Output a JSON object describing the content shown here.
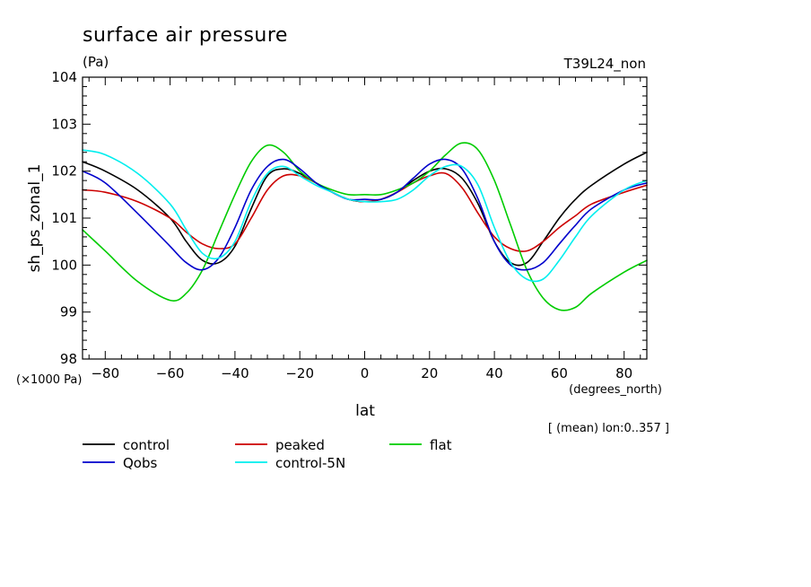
{
  "chart_data": {
    "type": "line",
    "title": "surface air pressure",
    "units_label": "(Pa)",
    "run_label": "T39L24_non",
    "xlabel": "lat",
    "x_units": "(degrees_north)",
    "ylabel": "sh_ps_zonal_1",
    "y_scale_note": "(×1000 Pa)",
    "mean_note": "[ (mean) lon:0..357 ]",
    "xlim": [
      -87,
      87
    ],
    "ylim": [
      98,
      104
    ],
    "x_ticks": [
      -80,
      -60,
      -40,
      -20,
      0,
      20,
      40,
      60,
      80
    ],
    "y_ticks": [
      98,
      99,
      100,
      101,
      102,
      103,
      104
    ],
    "grid": false,
    "legend_position": "below-left",
    "x": [
      -87,
      -80,
      -70,
      -60,
      -55,
      -50,
      -45,
      -40,
      -35,
      -30,
      -25,
      -20,
      -15,
      -10,
      -5,
      0,
      5,
      10,
      15,
      20,
      25,
      30,
      35,
      40,
      45,
      50,
      55,
      60,
      65,
      70,
      80,
      87
    ],
    "series": [
      {
        "name": "control",
        "color": "#000000",
        "values": [
          102.2,
          102.0,
          101.6,
          101.0,
          100.5,
          100.1,
          100.05,
          100.4,
          101.2,
          101.9,
          102.05,
          101.95,
          101.75,
          101.55,
          101.4,
          101.35,
          101.4,
          101.55,
          101.8,
          102.0,
          102.05,
          101.85,
          101.3,
          100.5,
          100.05,
          100.05,
          100.5,
          101.0,
          101.4,
          101.7,
          102.15,
          102.4
        ]
      },
      {
        "name": "peaked",
        "color": "#cc0000",
        "values": [
          101.6,
          101.55,
          101.35,
          101.0,
          100.7,
          100.45,
          100.35,
          100.45,
          101.0,
          101.6,
          101.9,
          101.9,
          101.75,
          101.55,
          101.4,
          101.35,
          101.4,
          101.55,
          101.75,
          101.9,
          101.95,
          101.65,
          101.1,
          100.6,
          100.35,
          100.3,
          100.5,
          100.8,
          101.05,
          101.3,
          101.55,
          101.7
        ]
      },
      {
        "name": "flat",
        "color": "#00cc00",
        "values": [
          100.75,
          100.3,
          99.65,
          99.25,
          99.4,
          99.9,
          100.7,
          101.5,
          102.2,
          102.55,
          102.4,
          102.0,
          101.75,
          101.6,
          101.5,
          101.5,
          101.5,
          101.6,
          101.75,
          102.0,
          102.35,
          102.6,
          102.45,
          101.8,
          100.85,
          99.9,
          99.3,
          99.05,
          99.1,
          99.4,
          99.85,
          100.1
        ]
      },
      {
        "name": "Qobs",
        "color": "#0000cc",
        "values": [
          102.0,
          101.75,
          101.1,
          100.4,
          100.05,
          99.9,
          100.15,
          100.8,
          101.6,
          102.1,
          102.25,
          102.05,
          101.75,
          101.55,
          101.4,
          101.4,
          101.4,
          101.55,
          101.85,
          102.15,
          102.25,
          102.05,
          101.4,
          100.5,
          100.0,
          99.9,
          100.05,
          100.45,
          100.85,
          101.2,
          101.6,
          101.75
        ]
      },
      {
        "name": "control-5N",
        "color": "#00eeee",
        "values": [
          102.45,
          102.35,
          101.95,
          101.3,
          100.75,
          100.25,
          100.15,
          100.5,
          101.35,
          101.95,
          102.1,
          101.9,
          101.7,
          101.55,
          101.4,
          101.35,
          101.35,
          101.4,
          101.6,
          101.9,
          102.1,
          102.1,
          101.7,
          100.8,
          100.05,
          99.7,
          99.7,
          100.1,
          100.6,
          101.05,
          101.6,
          101.8
        ]
      }
    ]
  }
}
